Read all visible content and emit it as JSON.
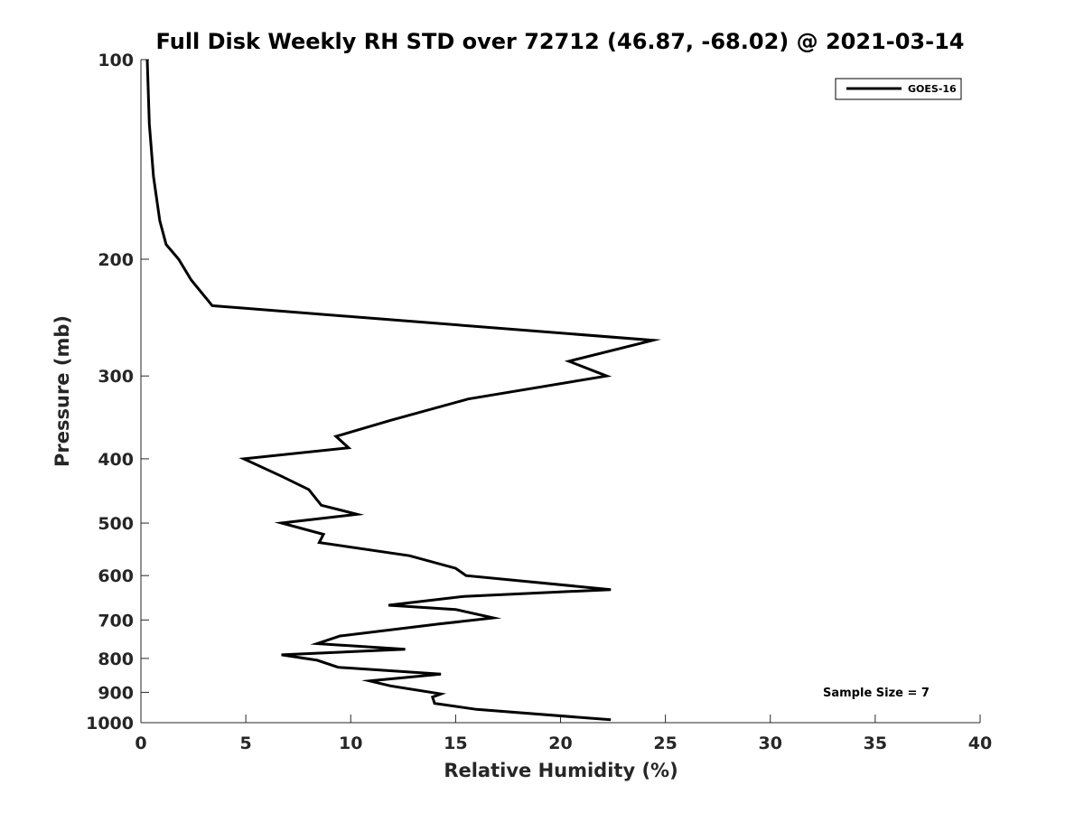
{
  "chart_data": {
    "type": "line",
    "title": "Full Disk Weekly RH STD over 72712 (46.87, -68.02) @ 2021-03-14",
    "xlabel": "Relative Humidity (%)",
    "ylabel": "Pressure (mb)",
    "xlim": [
      0,
      40
    ],
    "ylim": [
      100,
      1000
    ],
    "y_scale": "log",
    "y_reversed": true,
    "x_ticks": [
      0,
      5,
      10,
      15,
      20,
      25,
      30,
      35,
      40
    ],
    "y_ticks": [
      100,
      200,
      300,
      400,
      500,
      600,
      700,
      800,
      900,
      1000
    ],
    "grid": false,
    "legend_position": "top-right",
    "line_color": "#000000",
    "annotation": "Sample Size = 7",
    "series": [
      {
        "name": "GOES-16",
        "points": [
          [
            0.3,
            100
          ],
          [
            0.4,
            125
          ],
          [
            0.6,
            150
          ],
          [
            0.9,
            175
          ],
          [
            1.2,
            190
          ],
          [
            1.8,
            200
          ],
          [
            2.4,
            215
          ],
          [
            3.4,
            235
          ],
          [
            24.4,
            265
          ],
          [
            20.4,
            285
          ],
          [
            22.2,
            300
          ],
          [
            15.6,
            325
          ],
          [
            11.9,
            350
          ],
          [
            9.3,
            370
          ],
          [
            9.9,
            385
          ],
          [
            4.9,
            400
          ],
          [
            6.7,
            425
          ],
          [
            8.0,
            445
          ],
          [
            8.6,
            470
          ],
          [
            10.3,
            485
          ],
          [
            6.7,
            500
          ],
          [
            8.7,
            520
          ],
          [
            8.5,
            535
          ],
          [
            12.8,
            560
          ],
          [
            15.0,
            585
          ],
          [
            15.5,
            600
          ],
          [
            22.4,
            630
          ],
          [
            15.4,
            645
          ],
          [
            11.8,
            665
          ],
          [
            15.0,
            675
          ],
          [
            16.8,
            695
          ],
          [
            14.2,
            710
          ],
          [
            9.5,
            740
          ],
          [
            8.4,
            760
          ],
          [
            12.6,
            775
          ],
          [
            6.7,
            790
          ],
          [
            8.4,
            805
          ],
          [
            9.4,
            825
          ],
          [
            14.3,
            845
          ],
          [
            10.9,
            865
          ],
          [
            11.9,
            880
          ],
          [
            14.3,
            905
          ],
          [
            13.9,
            915
          ],
          [
            14.0,
            935
          ],
          [
            16.0,
            955
          ],
          [
            22.4,
            990
          ]
        ]
      }
    ]
  }
}
